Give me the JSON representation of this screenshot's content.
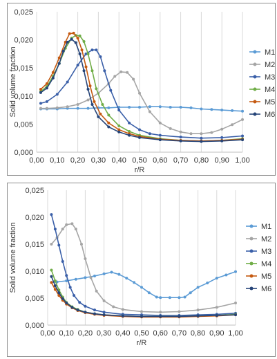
{
  "chart_data": [
    {
      "type": "line",
      "xlabel": "r/R",
      "ylabel": "Solid volume fraction",
      "xlim": [
        0,
        1
      ],
      "ylim": [
        0,
        0.025
      ],
      "x_ticks": [
        "0,00",
        "0,10",
        "0,20",
        "0,30",
        "0,40",
        "0,50",
        "0,60",
        "0,70",
        "0,80",
        "0,90",
        "1,00"
      ],
      "y_ticks": [
        "0,000",
        "0,005",
        "0,010",
        "0,015",
        "0,020",
        "0,025"
      ],
      "grid": "vertical",
      "legend_position": "right",
      "series": [
        {
          "name": "M1",
          "color": "#5b9bd5",
          "x": [
            0.02,
            0.05,
            0.1,
            0.15,
            0.2,
            0.25,
            0.3,
            0.35,
            0.4,
            0.45,
            0.5,
            0.55,
            0.6,
            0.65,
            0.7,
            0.75,
            0.8,
            0.85,
            0.9,
            0.95,
            1.0
          ],
          "y": [
            0.0077,
            0.0077,
            0.0077,
            0.0078,
            0.0078,
            0.0078,
            0.0079,
            0.0079,
            0.008,
            0.008,
            0.008,
            0.0081,
            0.0081,
            0.008,
            0.008,
            0.0079,
            0.0077,
            0.0076,
            0.0075,
            0.0074,
            0.0073
          ]
        },
        {
          "name": "M2",
          "color": "#a5a5a5",
          "x": [
            0.02,
            0.05,
            0.1,
            0.15,
            0.2,
            0.25,
            0.3,
            0.35,
            0.38,
            0.41,
            0.44,
            0.47,
            0.5,
            0.55,
            0.6,
            0.65,
            0.7,
            0.75,
            0.8,
            0.85,
            0.9,
            0.95,
            1.0
          ],
          "y": [
            0.0078,
            0.0078,
            0.0079,
            0.0081,
            0.0085,
            0.0093,
            0.0105,
            0.0122,
            0.0135,
            0.0143,
            0.0142,
            0.013,
            0.0105,
            0.0072,
            0.0052,
            0.0042,
            0.0036,
            0.0033,
            0.0033,
            0.0035,
            0.0041,
            0.0049,
            0.0058
          ]
        },
        {
          "name": "M3",
          "color": "#3a5fa8",
          "x": [
            0.02,
            0.05,
            0.1,
            0.15,
            0.2,
            0.24,
            0.27,
            0.29,
            0.31,
            0.33,
            0.36,
            0.4,
            0.45,
            0.5,
            0.55,
            0.6,
            0.7,
            0.8,
            0.9,
            1.0
          ],
          "y": [
            0.0087,
            0.009,
            0.0103,
            0.0125,
            0.0155,
            0.0175,
            0.0182,
            0.0182,
            0.017,
            0.0145,
            0.011,
            0.0075,
            0.0052,
            0.004,
            0.0033,
            0.003,
            0.0027,
            0.0025,
            0.0026,
            0.0029
          ]
        },
        {
          "name": "M4",
          "color": "#70ad47",
          "x": [
            0.02,
            0.05,
            0.08,
            0.11,
            0.14,
            0.17,
            0.19,
            0.21,
            0.23,
            0.25,
            0.27,
            0.29,
            0.32,
            0.35,
            0.4,
            0.45,
            0.5,
            0.6,
            0.7,
            0.8,
            0.9,
            1.0
          ],
          "y": [
            0.0108,
            0.0117,
            0.0135,
            0.0158,
            0.0185,
            0.0203,
            0.0208,
            0.0207,
            0.0197,
            0.0175,
            0.0145,
            0.0113,
            0.0085,
            0.0066,
            0.0047,
            0.0037,
            0.003,
            0.0024,
            0.0021,
            0.002,
            0.0021,
            0.0024
          ]
        },
        {
          "name": "M5",
          "color": "#c55a11",
          "x": [
            0.02,
            0.05,
            0.08,
            0.11,
            0.14,
            0.16,
            0.18,
            0.2,
            0.22,
            0.24,
            0.26,
            0.28,
            0.31,
            0.35,
            0.4,
            0.45,
            0.5,
            0.6,
            0.7,
            0.8,
            0.9,
            1.0
          ],
          "y": [
            0.0112,
            0.0122,
            0.0142,
            0.0168,
            0.0196,
            0.0211,
            0.0212,
            0.0203,
            0.0182,
            0.0152,
            0.0118,
            0.009,
            0.0068,
            0.0052,
            0.004,
            0.0033,
            0.0028,
            0.0023,
            0.0021,
            0.002,
            0.0021,
            0.0023
          ]
        },
        {
          "name": "M6",
          "color": "#264478",
          "x": [
            0.02,
            0.05,
            0.08,
            0.11,
            0.13,
            0.15,
            0.17,
            0.19,
            0.21,
            0.23,
            0.25,
            0.27,
            0.3,
            0.35,
            0.4,
            0.45,
            0.5,
            0.6,
            0.7,
            0.8,
            0.9,
            1.0
          ],
          "y": [
            0.0106,
            0.0114,
            0.0132,
            0.0158,
            0.018,
            0.0196,
            0.0201,
            0.0195,
            0.0175,
            0.0145,
            0.0112,
            0.0085,
            0.0063,
            0.0045,
            0.0036,
            0.003,
            0.0026,
            0.0022,
            0.002,
            0.0019,
            0.002,
            0.0022
          ]
        }
      ]
    },
    {
      "type": "line",
      "xlabel": "r/R",
      "ylabel": "Solid volume fraction",
      "xlim": [
        0,
        1
      ],
      "ylim": [
        0,
        0.025
      ],
      "x_ticks": [
        "0,00",
        "0,10",
        "0,20",
        "0,30",
        "0,40",
        "0,50",
        "0,60",
        "0,70",
        "0,80",
        "0,90",
        "1,00"
      ],
      "y_ticks": [
        "0,000",
        "0,005",
        "0,010",
        "0,015",
        "0,020",
        "0,025"
      ],
      "grid": "vertical",
      "legend_position": "right",
      "series": [
        {
          "name": "M1",
          "color": "#5b9bd5",
          "x": [
            0.02,
            0.05,
            0.1,
            0.15,
            0.2,
            0.25,
            0.3,
            0.34,
            0.38,
            0.42,
            0.46,
            0.5,
            0.54,
            0.58,
            0.6,
            0.65,
            0.7,
            0.73,
            0.76,
            0.8,
            0.85,
            0.9,
            0.95,
            1.0
          ],
          "y": [
            0.0079,
            0.008,
            0.0082,
            0.0085,
            0.0088,
            0.0091,
            0.0095,
            0.0098,
            0.0094,
            0.0087,
            0.0079,
            0.007,
            0.006,
            0.0052,
            0.0051,
            0.0051,
            0.0051,
            0.0052,
            0.006,
            0.007,
            0.0078,
            0.0087,
            0.0093,
            0.0099
          ]
        },
        {
          "name": "M2",
          "color": "#a5a5a5",
          "x": [
            0.02,
            0.05,
            0.08,
            0.1,
            0.13,
            0.15,
            0.18,
            0.2,
            0.23,
            0.26,
            0.3,
            0.35,
            0.4,
            0.5,
            0.6,
            0.7,
            0.8,
            0.9,
            1.0
          ],
          "y": [
            0.015,
            0.0162,
            0.0178,
            0.0186,
            0.0188,
            0.0178,
            0.015,
            0.0123,
            0.0088,
            0.0063,
            0.0045,
            0.0034,
            0.0029,
            0.0025,
            0.0024,
            0.0025,
            0.0028,
            0.0033,
            0.0041
          ]
        },
        {
          "name": "M3",
          "color": "#3a5fa8",
          "x": [
            0.02,
            0.04,
            0.06,
            0.08,
            0.1,
            0.12,
            0.14,
            0.17,
            0.2,
            0.25,
            0.3,
            0.4,
            0.5,
            0.6,
            0.7,
            0.8,
            0.9,
            1.0
          ],
          "y": [
            0.0205,
            0.0178,
            0.0148,
            0.0118,
            0.0092,
            0.007,
            0.0055,
            0.0042,
            0.0035,
            0.0028,
            0.0024,
            0.002,
            0.0019,
            0.0018,
            0.0018,
            0.0019,
            0.002,
            0.0022
          ]
        },
        {
          "name": "M4",
          "color": "#70ad47",
          "x": [
            0.02,
            0.04,
            0.06,
            0.08,
            0.1,
            0.13,
            0.16,
            0.2,
            0.25,
            0.3,
            0.4,
            0.5,
            0.6,
            0.7,
            0.8,
            0.9,
            1.0
          ],
          "y": [
            0.0102,
            0.0082,
            0.0065,
            0.0052,
            0.0042,
            0.0034,
            0.0029,
            0.0024,
            0.0021,
            0.0019,
            0.0017,
            0.0016,
            0.0016,
            0.0016,
            0.0017,
            0.0018,
            0.002
          ]
        },
        {
          "name": "M5",
          "color": "#c55a11",
          "x": [
            0.02,
            0.04,
            0.06,
            0.08,
            0.1,
            0.13,
            0.16,
            0.2,
            0.25,
            0.3,
            0.4,
            0.5,
            0.6,
            0.7,
            0.8,
            0.9,
            1.0
          ],
          "y": [
            0.0079,
            0.0066,
            0.0055,
            0.0046,
            0.0039,
            0.0032,
            0.0027,
            0.0023,
            0.002,
            0.0018,
            0.0016,
            0.0015,
            0.0015,
            0.0015,
            0.0016,
            0.0017,
            0.0019
          ]
        },
        {
          "name": "M6",
          "color": "#264478",
          "x": [
            0.02,
            0.04,
            0.06,
            0.08,
            0.1,
            0.13,
            0.16,
            0.2,
            0.25,
            0.3,
            0.4,
            0.5,
            0.6,
            0.7,
            0.8,
            0.9,
            1.0
          ],
          "y": [
            0.009,
            0.0073,
            0.006,
            0.0049,
            0.0041,
            0.0033,
            0.0028,
            0.0024,
            0.0021,
            0.0019,
            0.0017,
            0.0016,
            0.0016,
            0.0016,
            0.0017,
            0.0018,
            0.0019
          ]
        }
      ]
    }
  ]
}
